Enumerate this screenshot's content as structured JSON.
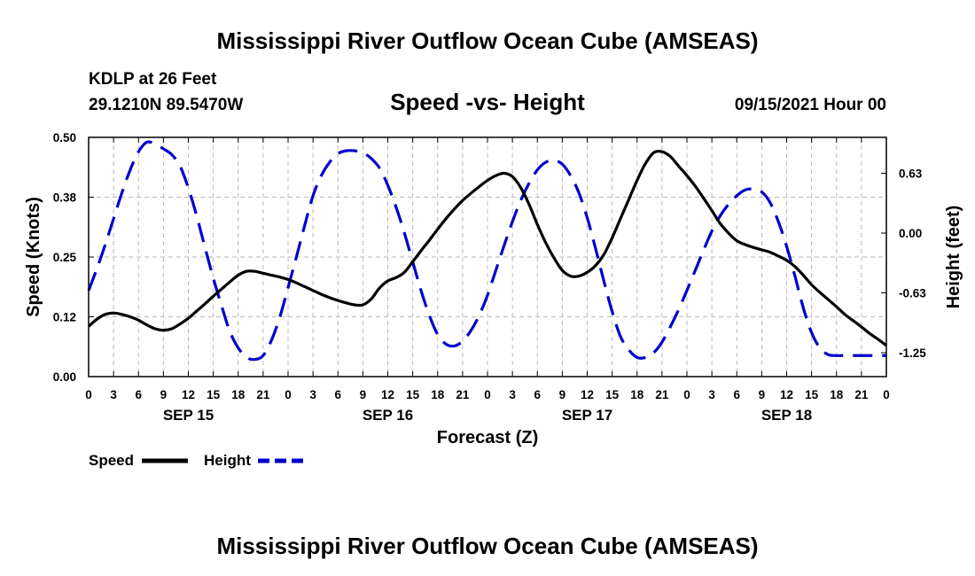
{
  "page": {
    "title_top": "Mississippi River Outflow Ocean Cube (AMSEAS)",
    "title_bottom": "Mississippi River Outflow Ocean Cube (AMSEAS)",
    "station": "KDLP at 26 Feet",
    "location": "29.1210N  89.5470W",
    "chart_title": "Speed -vs- Height",
    "datetime": "09/15/2021 Hour 00"
  },
  "colors": {
    "speed": "#000000",
    "height": "#0000cc",
    "grid": "#bbbbbb"
  },
  "chart_data": {
    "type": "line",
    "title": "Speed -vs- Height",
    "xlabel": "Forecast (Z)",
    "xlim": [
      0,
      96
    ],
    "x_ticks": [
      0,
      3,
      6,
      9,
      12,
      15,
      18,
      21,
      24,
      27,
      30,
      33,
      36,
      39,
      42,
      45,
      48,
      51,
      54,
      57,
      60,
      63,
      66,
      69,
      72,
      75,
      78,
      81,
      84,
      87,
      90,
      93,
      96
    ],
    "x_tick_labels": [
      "0",
      "3",
      "6",
      "9",
      "12",
      "15",
      "18",
      "21",
      "0",
      "3",
      "6",
      "9",
      "12",
      "15",
      "18",
      "21",
      "0",
      "3",
      "6",
      "9",
      "12",
      "15",
      "18",
      "21",
      "0",
      "3",
      "6",
      "9",
      "12",
      "15",
      "18",
      "21",
      "0"
    ],
    "date_labels": [
      {
        "x": 12,
        "label": "SEP 15"
      },
      {
        "x": 36,
        "label": "SEP 16"
      },
      {
        "x": 60,
        "label": "SEP 17"
      },
      {
        "x": 84,
        "label": "SEP 18"
      }
    ],
    "y_left": {
      "label": "Speed (Knots)",
      "ylim": [
        0,
        0.5
      ],
      "ticks": [
        0,
        0.125,
        0.25,
        0.375,
        0.5
      ],
      "tick_labels": [
        "0.00",
        "0.12",
        "0.25",
        "0.38",
        "0.50"
      ]
    },
    "y_right": {
      "label": "Height (feet)",
      "ylim": [
        -1.5,
        1.0
      ],
      "ticks": [
        -1.25,
        -0.625,
        0,
        0.625
      ],
      "tick_labels": [
        "-1.25",
        "-0.63",
        "0.00",
        "0.63"
      ]
    },
    "series": [
      {
        "name": "Speed",
        "axis": "left",
        "style": "solid",
        "x": [
          0,
          1,
          2,
          3,
          4,
          5,
          6,
          7,
          8,
          9,
          10,
          11,
          12,
          13,
          14,
          15,
          16,
          17,
          18,
          19,
          20,
          21,
          22,
          23,
          24,
          25,
          26,
          27,
          28,
          29,
          30,
          31,
          32,
          33,
          34,
          35,
          36,
          37,
          38,
          39,
          40,
          41,
          42,
          43,
          44,
          45,
          46,
          47,
          48,
          49,
          50,
          51,
          52,
          53,
          54,
          55,
          56,
          57,
          58,
          59,
          60,
          61,
          62,
          63,
          64,
          65,
          66,
          67,
          68,
          69,
          70,
          71,
          72,
          73,
          74,
          75,
          76,
          77,
          78,
          79,
          80,
          81,
          82,
          83,
          84,
          85,
          86,
          87,
          88,
          89,
          90,
          91,
          92,
          93,
          94,
          95,
          96
        ],
        "values": [
          0.105,
          0.12,
          0.13,
          0.133,
          0.13,
          0.125,
          0.118,
          0.108,
          0.1,
          0.097,
          0.1,
          0.11,
          0.122,
          0.137,
          0.152,
          0.168,
          0.183,
          0.198,
          0.212,
          0.22,
          0.22,
          0.216,
          0.212,
          0.208,
          0.203,
          0.196,
          0.188,
          0.18,
          0.172,
          0.165,
          0.159,
          0.154,
          0.15,
          0.15,
          0.162,
          0.185,
          0.2,
          0.207,
          0.218,
          0.24,
          0.263,
          0.285,
          0.308,
          0.33,
          0.35,
          0.368,
          0.383,
          0.397,
          0.41,
          0.42,
          0.425,
          0.418,
          0.395,
          0.36,
          0.318,
          0.28,
          0.248,
          0.222,
          0.21,
          0.21,
          0.218,
          0.232,
          0.255,
          0.29,
          0.33,
          0.37,
          0.41,
          0.445,
          0.468,
          0.47,
          0.46,
          0.44,
          0.42,
          0.398,
          0.373,
          0.347,
          0.32,
          0.3,
          0.284,
          0.276,
          0.27,
          0.265,
          0.26,
          0.252,
          0.243,
          0.23,
          0.212,
          0.192,
          0.176,
          0.161,
          0.146,
          0.13,
          0.117,
          0.104,
          0.09,
          0.078,
          0.065
        ]
      },
      {
        "name": "Height",
        "axis": "right",
        "style": "dashed",
        "x": [
          0,
          1,
          2,
          3,
          4,
          5,
          6,
          7,
          8,
          9,
          10,
          11,
          12,
          13,
          14,
          15,
          16,
          17,
          18,
          19,
          20,
          21,
          22,
          23,
          24,
          25,
          26,
          27,
          28,
          29,
          30,
          31,
          32,
          33,
          34,
          35,
          36,
          37,
          38,
          39,
          40,
          41,
          42,
          43,
          44,
          45,
          46,
          47,
          48,
          49,
          50,
          51,
          52,
          53,
          54,
          55,
          56,
          57,
          58,
          59,
          60,
          61,
          62,
          63,
          64,
          65,
          66,
          67,
          68,
          69,
          70,
          71,
          72,
          73,
          74,
          75,
          76,
          77,
          78,
          79,
          80,
          81,
          82,
          83,
          84,
          85,
          86,
          87,
          88,
          89,
          90,
          91,
          92,
          93,
          94,
          95,
          96
        ],
        "values": [
          -0.6,
          -0.37,
          -0.12,
          0.15,
          0.42,
          0.66,
          0.85,
          0.95,
          0.93,
          0.88,
          0.82,
          0.7,
          0.47,
          0.18,
          -0.15,
          -0.47,
          -0.76,
          -1.03,
          -1.2,
          -1.3,
          -1.32,
          -1.28,
          -1.12,
          -0.88,
          -0.57,
          -0.25,
          0.08,
          0.39,
          0.6,
          0.74,
          0.83,
          0.86,
          0.86,
          0.84,
          0.78,
          0.68,
          0.5,
          0.27,
          0.0,
          -0.3,
          -0.6,
          -0.86,
          -1.06,
          -1.16,
          -1.18,
          -1.13,
          -1.02,
          -0.86,
          -0.65,
          -0.39,
          -0.13,
          0.12,
          0.34,
          0.52,
          0.66,
          0.74,
          0.76,
          0.72,
          0.6,
          0.42,
          0.16,
          -0.16,
          -0.5,
          -0.82,
          -1.08,
          -1.22,
          -1.3,
          -1.3,
          -1.25,
          -1.14,
          -0.98,
          -0.8,
          -0.6,
          -0.39,
          -0.18,
          0.02,
          0.18,
          0.3,
          0.39,
          0.45,
          0.46,
          0.43,
          0.32,
          0.12,
          -0.14,
          -0.45,
          -0.78,
          -1.04,
          -1.2,
          -1.27,
          -1.28,
          -1.28,
          -1.28,
          -1.28,
          -1.28,
          -1.28,
          -1.28
        ]
      }
    ],
    "legend": [
      {
        "name": "Speed",
        "label": "Speed",
        "style": "solid"
      },
      {
        "name": "Height",
        "label": "Height",
        "style": "dashed"
      }
    ],
    "legend_position": "bottom-left",
    "grid": true
  }
}
